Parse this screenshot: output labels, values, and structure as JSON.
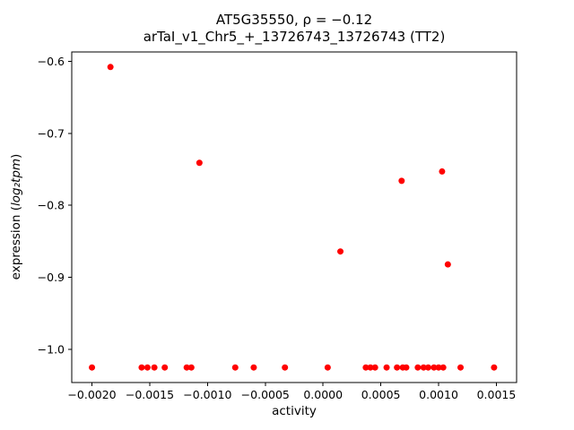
{
  "figure": {
    "title_line1": "AT5G35550, ρ = −0.12",
    "title_line2": "arTaI_v1_Chr5_+_13726743_13726743 (TT2)",
    "xlabel": "activity",
    "ylabel_prefix": "expression (",
    "ylabel_math": "log₂tpm",
    "ylabel_suffix": ")"
  },
  "chart_data": {
    "type": "scatter",
    "title": "AT5G35550, ρ = −0.12\narTaI_v1_Chr5_+_13726743_13726743 (TT2)",
    "xlabel": "activity",
    "ylabel": "expression (log2 tpm)",
    "legend": "none",
    "grid": false,
    "xlim": [
      -0.002175,
      0.001675
    ],
    "ylim": [
      -1.0459,
      -0.5871
    ],
    "xticks": {
      "values": [
        -0.002,
        -0.0015,
        -0.001,
        -0.0005,
        0.0,
        0.0005,
        0.001,
        0.0015
      ],
      "labels": [
        "−0.0020",
        "−0.0015",
        "−0.0010",
        "−0.0005",
        "0.0000",
        "0.0005",
        "0.0010",
        "0.0015"
      ]
    },
    "yticks": {
      "values": [
        -0.6,
        -0.7,
        -0.8,
        -0.9,
        -1.0
      ],
      "labels": [
        "−0.6",
        "−0.7",
        "−0.8",
        "−0.9",
        "−1.0"
      ]
    },
    "marker": {
      "shape": "circle",
      "color": "#ff0000",
      "radius": 3.5
    },
    "axis_color": "#000000",
    "points": [
      [
        -0.00184,
        -0.608
      ],
      [
        -0.00107,
        -0.741
      ],
      [
        0.00015,
        -0.864
      ],
      [
        0.00068,
        -0.766
      ],
      [
        0.00103,
        -0.753
      ],
      [
        0.00108,
        -0.882
      ],
      [
        -0.002,
        -1.025
      ],
      [
        -0.00157,
        -1.025
      ],
      [
        -0.00152,
        -1.025
      ],
      [
        -0.00146,
        -1.025
      ],
      [
        -0.00137,
        -1.025
      ],
      [
        -0.00118,
        -1.025
      ],
      [
        -0.00114,
        -1.025
      ],
      [
        -0.00076,
        -1.025
      ],
      [
        -0.0006,
        -1.025
      ],
      [
        -0.00033,
        -1.025
      ],
      [
        4e-05,
        -1.025
      ],
      [
        0.00037,
        -1.025
      ],
      [
        0.00041,
        -1.025
      ],
      [
        0.00045,
        -1.025
      ],
      [
        0.00055,
        -1.025
      ],
      [
        0.00064,
        -1.025
      ],
      [
        0.00069,
        -1.025
      ],
      [
        0.00072,
        -1.025
      ],
      [
        0.00082,
        -1.025
      ],
      [
        0.00087,
        -1.025
      ],
      [
        0.00091,
        -1.025
      ],
      [
        0.00096,
        -1.025
      ],
      [
        0.001,
        -1.025
      ],
      [
        0.00104,
        -1.025
      ],
      [
        0.00119,
        -1.025
      ],
      [
        0.00148,
        -1.025
      ]
    ]
  }
}
